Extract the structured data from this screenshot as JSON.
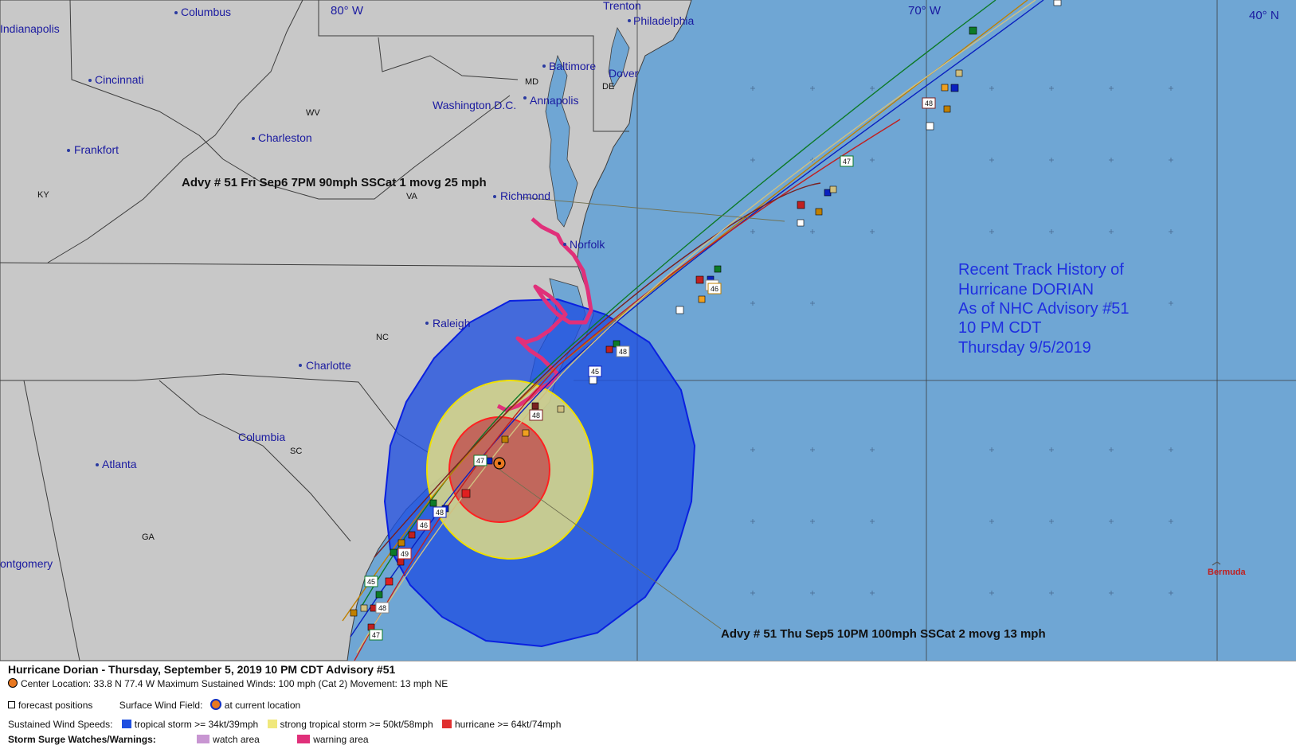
{
  "map": {
    "grid_labels": {
      "lon_80": "80° W",
      "lon_70": "70° W",
      "lat_40": "40° N"
    },
    "cities": [
      {
        "id": "columbus",
        "label": "Columbus"
      },
      {
        "id": "indianapolis",
        "label": "Indianapolis"
      },
      {
        "id": "cincinnati",
        "label": "Cincinnati"
      },
      {
        "id": "frankfort",
        "label": "Frankfort"
      },
      {
        "id": "charleston",
        "label": "Charleston"
      },
      {
        "id": "trenton",
        "label": "Trenton"
      },
      {
        "id": "philadelphia",
        "label": "Philadelphia"
      },
      {
        "id": "baltimore",
        "label": "Baltimore"
      },
      {
        "id": "dover",
        "label": "Dover"
      },
      {
        "id": "washington",
        "label": "Washington D.C."
      },
      {
        "id": "annapolis",
        "label": "Annapolis"
      },
      {
        "id": "richmond",
        "label": "Richmond"
      },
      {
        "id": "norfolk",
        "label": "Norfolk"
      },
      {
        "id": "raleigh",
        "label": "Raleigh"
      },
      {
        "id": "charlotte",
        "label": "Charlotte"
      },
      {
        "id": "columbia",
        "label": "Columbia"
      },
      {
        "id": "atlanta",
        "label": "Atlanta"
      },
      {
        "id": "montgomery",
        "label": "ontgomery"
      }
    ],
    "states": [
      {
        "id": "md",
        "label": "MD"
      },
      {
        "id": "de",
        "label": "DE"
      },
      {
        "id": "wv",
        "label": "WV"
      },
      {
        "id": "ky",
        "label": "KY"
      },
      {
        "id": "va",
        "label": "VA"
      },
      {
        "id": "nc",
        "label": "NC"
      },
      {
        "id": "sc",
        "label": "SC"
      },
      {
        "id": "ga",
        "label": "GA"
      }
    ],
    "bermuda": "Bermuda",
    "advisory_forecast_label": "Advy # 51 Fri Sep6 7PM  90mph SSCat 1 movg 25 mph",
    "advisory_current_label": "Advy # 51 Thu Sep5 10PM  100mph SSCat 2 movg 13 mph",
    "history_lines": [
      "Recent Track History of",
      "Hurricane DORIAN",
      "As of NHC Advisory #51",
      "10 PM CDT",
      "Thursday 9/5/2019"
    ],
    "advisory_markers": [
      "48",
      "47",
      "54",
      "46",
      "48",
      "45",
      "48",
      "47",
      "46",
      "48",
      "49",
      "45",
      "48",
      "47"
    ],
    "colors": {
      "ocean": "#6fa6d4",
      "land": "#c8c8c8",
      "tropical_storm": "#1f4fe0",
      "strong_tropical_storm": "#f0e87c",
      "hurricane": "#e03030",
      "watch": "#c896d2",
      "warning": "#e0307a",
      "center": "#e87820"
    }
  },
  "legend": {
    "title": "Hurricane Dorian  -  Thursday, September 5, 2019  10 PM CDT   Advisory #51",
    "center_location": "Center Location: 33.8 N  77.4 W   Maximum Sustained Winds: 100 mph (Cat 2) Movement: 13 mph NE",
    "forecast_positions": "forecast positions",
    "surface_wind_field": "Surface Wind Field:",
    "at_current_location": "at current location",
    "sustained_wind_speeds": "Sustained Wind Speeds:",
    "tropical_storm": "tropical storm >= 34kt/39mph",
    "strong_tropical_storm": "strong tropical storm >= 50kt/58mph",
    "hurricane": "hurricane >= 64kt/74mph",
    "storm_surge": "Storm Surge Watches/Warnings:",
    "watch_area": "watch area",
    "warning_area": "warning area"
  }
}
